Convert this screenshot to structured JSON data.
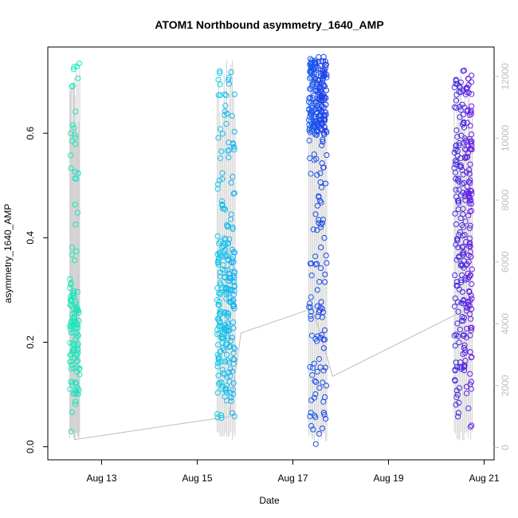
{
  "chart_data": {
    "type": "scatter",
    "title": "ATOM1 Northbound asymmetry_1640_AMP",
    "xlabel": "Date",
    "ylabel": "asymmetry_1640_AMP",
    "x_axis_type": "date",
    "x_tick_labels": [
      "Aug 13",
      "Aug 15",
      "Aug 17",
      "Aug 19",
      "Aug 21"
    ],
    "x_tick_dates": [
      "2021-08-13",
      "2021-08-15",
      "2021-08-17",
      "2021-08-19",
      "2021-08-21"
    ],
    "xlim": [
      "2021-08-11 21:00",
      "2021-08-21 05:00"
    ],
    "ylim": [
      -0.025,
      0.765
    ],
    "y_ticks": [
      0.0,
      0.2,
      0.4,
      0.6
    ],
    "y_tick_labels": [
      "0.0",
      "0.2",
      "0.4",
      "0.6"
    ],
    "secondary_axis": {
      "side": "right",
      "color": "#bdbdbd",
      "ticks": [
        0,
        2000,
        4000,
        6000,
        8000,
        10000,
        12000
      ],
      "tick_labels": [
        "0",
        "2000",
        "4000",
        "6000",
        "8000",
        "10000",
        "12000"
      ],
      "ylim": [
        -400,
        12950
      ]
    },
    "grid": false,
    "legend": "none",
    "clusters": [
      {
        "date": "2021-08-12",
        "x_start": "2021-08-12 08:00",
        "x_end": "2021-08-12 13:00",
        "color_from": "#1de9b6",
        "color_to": "#14e3c3",
        "y_min": 0.025,
        "y_max": 0.74,
        "dense_band": [
          0.1,
          0.3
        ],
        "n": 130
      },
      {
        "date": "2021-08-15",
        "x_start": "2021-08-15 10:00",
        "x_end": "2021-08-15 19:00",
        "color_from": "#13cbe8",
        "color_to": "#1ab0ef",
        "y_min": 0.05,
        "y_max": 0.745,
        "dense_band": [
          0.1,
          0.4
        ],
        "n": 260
      },
      {
        "date": "2021-08-17",
        "x_start": "2021-08-17 08:00",
        "x_end": "2021-08-17 17:00",
        "color_from": "#1a5ef0",
        "color_to": "#1f3ce6",
        "y_min": 0.005,
        "y_max": 0.75,
        "dense_band": [
          0.6,
          0.74
        ],
        "n": 300
      },
      {
        "date": "2021-08-20",
        "x_start": "2021-08-20 09:00",
        "x_end": "2021-08-20 18:00",
        "color_from": "#3a2ee0",
        "color_to": "#6a1ee6",
        "y_min": 0.035,
        "y_max": 0.735,
        "dense_band": [
          0.1,
          0.7
        ],
        "n": 280
      }
    ],
    "count_line": {
      "color": "#bdbdbd",
      "points": [
        {
          "x": "2021-08-12 10:00",
          "y": 250
        },
        {
          "x": "2021-08-15 16:00",
          "y": 1000
        },
        {
          "x": "2021-08-15 22:00",
          "y": 3700
        },
        {
          "x": "2021-08-17 10:00",
          "y": 4500
        },
        {
          "x": "2021-08-17 20:00",
          "y": 2300
        },
        {
          "x": "2021-08-20 10:00",
          "y": 4300
        }
      ]
    }
  }
}
